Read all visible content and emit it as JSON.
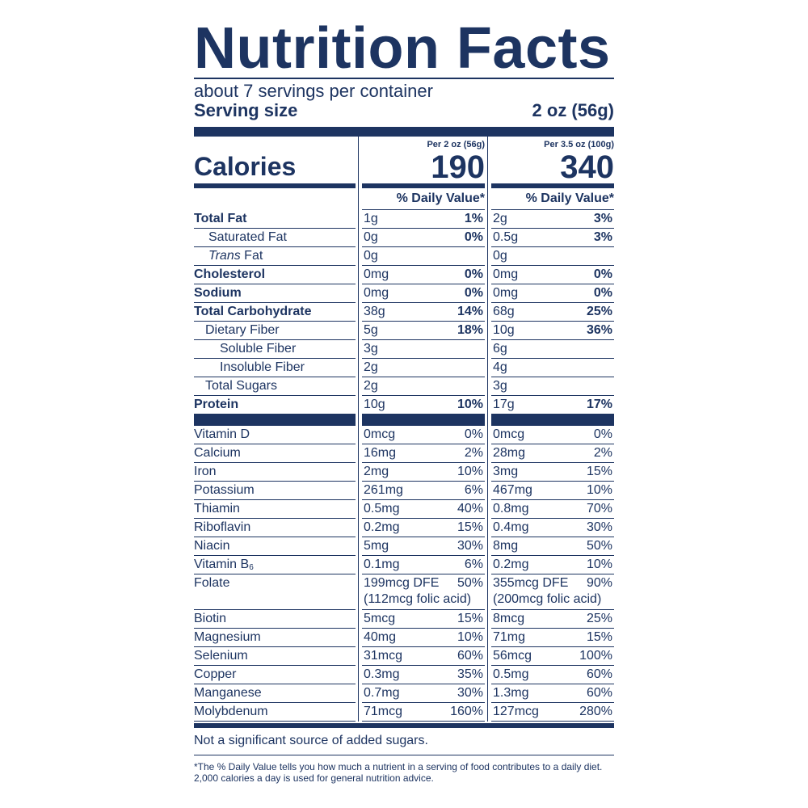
{
  "title": "Nutrition Facts",
  "servings_per_container": "about 7 servings per container",
  "serving_size_label": "Serving size",
  "serving_size_value": "2 oz (56g)",
  "calories_label": "Calories",
  "col1": {
    "per": "Per 2 oz (56g)",
    "calories": "190"
  },
  "col2": {
    "per": "Per 3.5 oz (100g)",
    "calories": "340"
  },
  "daily_value_header": "% Daily Value*",
  "nutrients": [
    {
      "name": "Total Fat",
      "a": "1g",
      "ap": "1%",
      "b": "2g",
      "bp": "3%"
    },
    {
      "name": "Saturated Fat",
      "a": "0g",
      "ap": "0%",
      "b": "0.5g",
      "bp": "3%"
    },
    {
      "name": "Trans",
      "name_suffix": " Fat",
      "a": "0g",
      "ap": "",
      "b": "0g",
      "bp": ""
    },
    {
      "name": "Cholesterol",
      "a": "0mg",
      "ap": "0%",
      "b": "0mg",
      "bp": "0%"
    },
    {
      "name": "Sodium",
      "a": "0mg",
      "ap": "0%",
      "b": "0mg",
      "bp": "0%"
    },
    {
      "name": "Total Carbohydrate",
      "a": "38g",
      "ap": "14%",
      "b": "68g",
      "bp": "25%"
    },
    {
      "name": "Dietary Fiber",
      "a": "5g",
      "ap": "18%",
      "b": "10g",
      "bp": "36%"
    },
    {
      "name": "Soluble Fiber",
      "a": "3g",
      "ap": "",
      "b": "6g",
      "bp": ""
    },
    {
      "name": "Insoluble Fiber",
      "a": "2g",
      "ap": "",
      "b": "4g",
      "bp": ""
    },
    {
      "name": "Total Sugars",
      "a": "2g",
      "ap": "",
      "b": "3g",
      "bp": ""
    },
    {
      "name": "Protein",
      "a": "10g",
      "ap": "10%",
      "b": "17g",
      "bp": "17%"
    }
  ],
  "vitamins": [
    {
      "name": "Vitamin D",
      "a": "0mcg",
      "ap": "0%",
      "b": "0mcg",
      "bp": "0%"
    },
    {
      "name": "Calcium",
      "a": "16mg",
      "ap": "2%",
      "b": "28mg",
      "bp": "2%"
    },
    {
      "name": "Iron",
      "a": "2mg",
      "ap": "10%",
      "b": "3mg",
      "bp": "15%"
    },
    {
      "name": "Potassium",
      "a": "261mg",
      "ap": "6%",
      "b": "467mg",
      "bp": "10%"
    },
    {
      "name": "Thiamin",
      "a": "0.5mg",
      "ap": "40%",
      "b": "0.8mg",
      "bp": "70%"
    },
    {
      "name": "Riboflavin",
      "a": "0.2mg",
      "ap": "15%",
      "b": "0.4mg",
      "bp": "30%"
    },
    {
      "name": "Niacin",
      "a": "5mg",
      "ap": "30%",
      "b": "8mg",
      "bp": "50%"
    },
    {
      "name": "Vitamin B",
      "name_sub": "6",
      "a": "0.1mg",
      "ap": "6%",
      "b": "0.2mg",
      "bp": "10%"
    },
    {
      "name": "Folate",
      "a": "199mcg DFE",
      "ap": "50%",
      "a2": "(112mcg folic acid)",
      "b": "355mcg DFE",
      "bp": "90%",
      "b2": "(200mcg folic acid)"
    },
    {
      "name": "Biotin",
      "a": "5mcg",
      "ap": "15%",
      "b": "8mcg",
      "bp": "25%"
    },
    {
      "name": "Magnesium",
      "a": "40mg",
      "ap": "10%",
      "b": "71mg",
      "bp": "15%"
    },
    {
      "name": "Selenium",
      "a": "31mcg",
      "ap": "60%",
      "b": "56mcg",
      "bp": "100%"
    },
    {
      "name": "Copper",
      "a": "0.3mg",
      "ap": "35%",
      "b": "0.5mg",
      "bp": "60%"
    },
    {
      "name": "Manganese",
      "a": "0.7mg",
      "ap": "30%",
      "b": "1.3mg",
      "bp": "60%"
    },
    {
      "name": "Molybdenum",
      "a": "71mcg",
      "ap": "160%",
      "b": "127mcg",
      "bp": "280%"
    }
  ],
  "footnote_sugars": "Not a significant source of added sugars.",
  "footnote_dv": "*The % Daily Value tells you how much a nutrient in a serving of food contributes to a daily diet. 2,000 calories a day is used for general nutrition advice.",
  "colors": {
    "ink": "#1d3461",
    "background": "#ffffff"
  }
}
